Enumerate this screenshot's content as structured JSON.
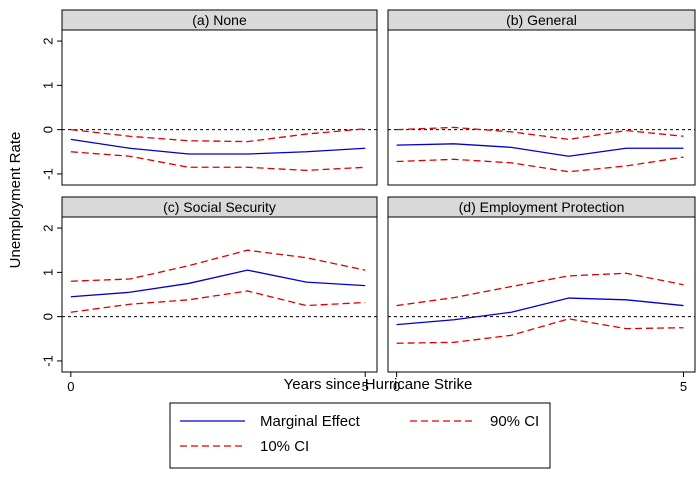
{
  "shared": {
    "ylabel": "Unemployment Rate",
    "xlabel": "Years since Hurricane Strike"
  },
  "chart_data": [
    {
      "type": "line",
      "title": "(a) None",
      "x": [
        0,
        1,
        2,
        3,
        4,
        5
      ],
      "xlim": [
        -0.15,
        5.2
      ],
      "ylim": [
        -1.25,
        2.25
      ],
      "yticks": [
        2,
        1,
        0,
        -1
      ],
      "reference_line": 0,
      "series": [
        {
          "name": "Marginal Effect",
          "color": "#0000cc",
          "dashed": false,
          "values": [
            -0.22,
            -0.42,
            -0.55,
            -0.55,
            -0.5,
            -0.42
          ]
        },
        {
          "name": "90% CI",
          "color": "#e00000",
          "dashed": true,
          "values": [
            0,
            -0.15,
            -0.25,
            -0.27,
            -0.1,
            0.02
          ]
        },
        {
          "name": "10% CI",
          "color": "#e00000",
          "dashed": true,
          "values": [
            -0.5,
            -0.6,
            -0.85,
            -0.85,
            -0.92,
            -0.85
          ]
        }
      ]
    },
    {
      "type": "line",
      "title": "(b) General",
      "x": [
        0,
        1,
        2,
        3,
        4,
        5
      ],
      "xlim": [
        -0.15,
        5.2
      ],
      "ylim": [
        -1.25,
        2.25
      ],
      "reference_line": 0,
      "series": [
        {
          "name": "Marginal Effect",
          "color": "#0000cc",
          "dashed": false,
          "values": [
            -0.35,
            -0.32,
            -0.4,
            -0.6,
            -0.42,
            -0.42
          ]
        },
        {
          "name": "90% CI",
          "color": "#e00000",
          "dashed": true,
          "values": [
            0,
            0.05,
            -0.05,
            -0.22,
            -0.02,
            -0.15
          ]
        },
        {
          "name": "10% CI",
          "color": "#e00000",
          "dashed": true,
          "values": [
            -0.72,
            -0.67,
            -0.75,
            -0.95,
            -0.82,
            -0.62
          ]
        }
      ]
    },
    {
      "type": "line",
      "title": "(c) Social Security",
      "x": [
        0,
        1,
        2,
        3,
        4,
        5
      ],
      "xlim": [
        -0.15,
        5.2
      ],
      "ylim": [
        -1.25,
        2.25
      ],
      "xticks": [
        0,
        5
      ],
      "yticks": [
        2,
        1,
        0,
        -1
      ],
      "reference_line": 0,
      "series": [
        {
          "name": "Marginal Effect",
          "color": "#0000cc",
          "dashed": false,
          "values": [
            0.45,
            0.55,
            0.75,
            1.05,
            0.78,
            0.7
          ]
        },
        {
          "name": "90% CI",
          "color": "#e00000",
          "dashed": true,
          "values": [
            0.8,
            0.85,
            1.15,
            1.5,
            1.33,
            1.05
          ]
        },
        {
          "name": "10% CI",
          "color": "#e00000",
          "dashed": true,
          "values": [
            0.1,
            0.28,
            0.38,
            0.58,
            0.25,
            0.32
          ]
        }
      ]
    },
    {
      "type": "line",
      "title": "(d) Employment Protection",
      "x": [
        0,
        1,
        2,
        3,
        4,
        5
      ],
      "xlim": [
        -0.15,
        5.2
      ],
      "ylim": [
        -1.25,
        2.25
      ],
      "xticks": [
        0,
        5
      ],
      "reference_line": 0,
      "series": [
        {
          "name": "Marginal Effect",
          "color": "#0000cc",
          "dashed": false,
          "values": [
            -0.18,
            -0.07,
            0.1,
            0.42,
            0.38,
            0.25
          ]
        },
        {
          "name": "90% CI",
          "color": "#e00000",
          "dashed": true,
          "values": [
            0.25,
            0.43,
            0.68,
            0.92,
            0.98,
            0.72
          ]
        },
        {
          "name": "10% CI",
          "color": "#e00000",
          "dashed": true,
          "values": [
            -0.6,
            -0.58,
            -0.42,
            -0.05,
            -0.27,
            -0.25
          ]
        }
      ]
    }
  ]
}
